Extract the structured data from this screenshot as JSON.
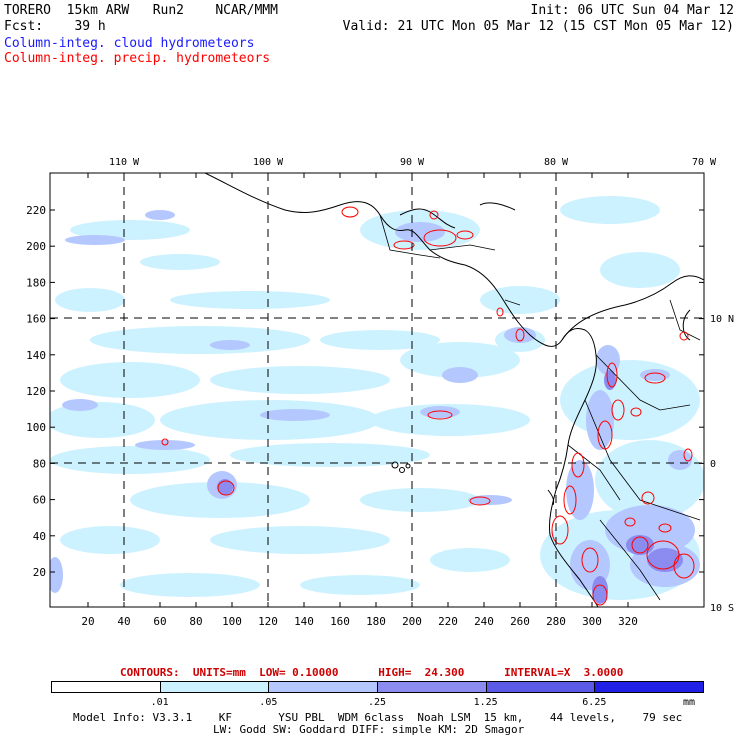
{
  "header": {
    "line1_left": "TORERO  15km ARW   Run2    NCAR/MMM",
    "line1_right": "Init: 06 UTC Sun 04 Mar 12",
    "line2_left": "Fcst:    39 h",
    "line2_right": "Valid: 21 UTC Mon 05 Mar 12 (15 CST Mon 05 Mar 12)",
    "legend_cloud": "Column-integ. cloud hydrometeors",
    "legend_precip": "Column-integ. precip. hydrometeors",
    "legend_cloud_color": "#1a1aff",
    "legend_precip_color": "#ff0000"
  },
  "map": {
    "lon_labels": [
      "110 W",
      "100 W",
      "90 W",
      "80 W",
      "70 W"
    ],
    "lat_labels": [
      "10 N",
      "0",
      "10 S"
    ],
    "y_ticks": [
      "220",
      "200",
      "180",
      "160",
      "140",
      "120",
      "100",
      "80",
      "60",
      "40",
      "20"
    ],
    "x_ticks": [
      "20",
      "40",
      "60",
      "80",
      "100",
      "120",
      "140",
      "160",
      "180",
      "200",
      "220",
      "240",
      "260",
      "280",
      "300",
      "320"
    ]
  },
  "contour_info": {
    "text": "CONTOURS:  UNITS=mm  LOW= 0.10000      HIGH=  24.300      INTERVAL=X  3.0000",
    "color": "#cc0000"
  },
  "colorbar": {
    "labels": [
      ".01",
      ".05",
      ".25",
      "1.25",
      "6.25",
      "mm"
    ],
    "colors": [
      "#ffffff",
      "#cdf2ff",
      "#b4c8ff",
      "#8c8cf0",
      "#5a5ae6",
      "#2020e6"
    ]
  },
  "footer": {
    "line1": "Model Info: V3.3.1    KF       YSU PBL  WDM 6class  Noah LSM  15 km,    44 levels,    79 sec",
    "line2": "LW: Godd SW: Goddard DIFF: simple KM: 2D Smagor"
  }
}
